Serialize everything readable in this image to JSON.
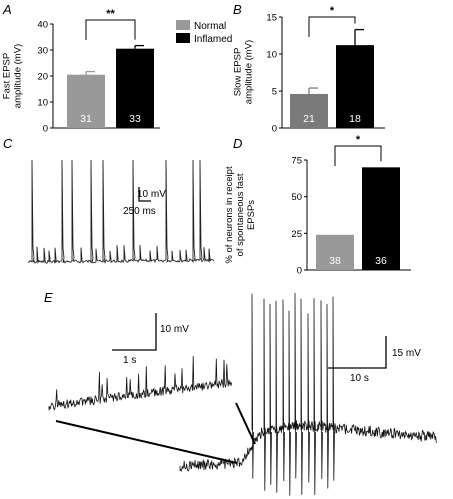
{
  "colors": {
    "normal": "#999999",
    "inflamed": "#000000",
    "panel_b_normal": "#7a7a7a",
    "trace": "#111111"
  },
  "legend": [
    {
      "label": "Normal",
      "color": "#999999"
    },
    {
      "label": "Inflamed",
      "color": "#000000"
    }
  ],
  "panels": {
    "A": {
      "letter": "A"
    },
    "B": {
      "letter": "B"
    },
    "C": {
      "letter": "C",
      "scale_y": "10 mV",
      "scale_x": "250 ms"
    },
    "D": {
      "letter": "D"
    },
    "E": {
      "letter": "E",
      "inset_scale_y": "10 mV",
      "inset_scale_x": "1 s",
      "main_scale_y": "15 mV",
      "main_scale_x": "10 s"
    }
  },
  "chart_data": [
    {
      "panel": "A",
      "type": "bar",
      "categories": [
        "Normal",
        "Inflamed"
      ],
      "values": [
        20.5,
        30.5
      ],
      "errors": [
        1.2,
        1.2
      ],
      "n": [
        "31",
        "33"
      ],
      "ylabel": "Fast EPSP amplitude (mV)",
      "ylim": [
        0,
        40
      ],
      "yticks": [
        "0",
        "10",
        "20",
        "30",
        "40"
      ],
      "significance": "**"
    },
    {
      "panel": "B",
      "type": "bar",
      "categories": [
        "Normal",
        "Inflamed"
      ],
      "values": [
        4.6,
        11.2
      ],
      "errors": [
        0.8,
        2.1
      ],
      "n": [
        "21",
        "18"
      ],
      "ylabel": "Slow EPSP amplitude (mV)",
      "ylim": [
        0,
        15
      ],
      "yticks": [
        "0",
        "5",
        "10",
        "15"
      ],
      "significance": "*"
    },
    {
      "panel": "D",
      "type": "bar",
      "categories": [
        "Normal",
        "Inflamed"
      ],
      "values": [
        24,
        70
      ],
      "n": [
        "38",
        "36"
      ],
      "ylabel": "% of neurons in receipt of spontaneous fast EPSPs",
      "ylim": [
        0,
        75
      ],
      "yticks": [
        "0",
        "25",
        "50",
        "75"
      ],
      "significance": "*"
    }
  ]
}
